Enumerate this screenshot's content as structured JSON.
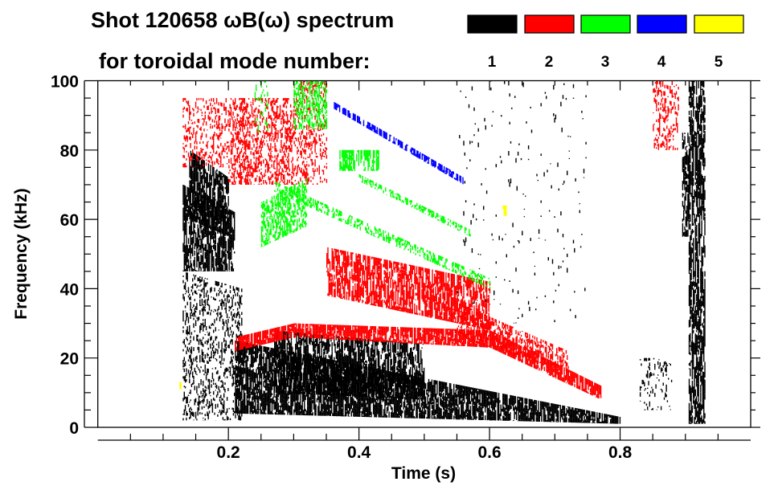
{
  "chart_data": {
    "type": "heatmap",
    "title_line1": "Shot 120658 ωB(ω) spectrum",
    "title_line2": "for toroidal mode number:",
    "xlabel": "Time (s)",
    "ylabel": "Frequency (kHz)",
    "xlim": [
      0,
      1.0
    ],
    "ylim": [
      0,
      100
    ],
    "xticks": [
      {
        "v": 0.2,
        "label": "0.2"
      },
      {
        "v": 0.4,
        "label": "0.4"
      },
      {
        "v": 0.6,
        "label": "0.6"
      },
      {
        "v": 0.8,
        "label": "0.8"
      }
    ],
    "yticks": [
      {
        "v": 0,
        "label": "0"
      },
      {
        "v": 20,
        "label": "20"
      },
      {
        "v": 40,
        "label": "40"
      },
      {
        "v": 60,
        "label": "60"
      },
      {
        "v": 80,
        "label": "80"
      },
      {
        "v": 100,
        "label": "100"
      }
    ],
    "legend": [
      {
        "mode": "1",
        "color": "#000000"
      },
      {
        "mode": "2",
        "color": "#ff0000"
      },
      {
        "mode": "3",
        "color": "#00ff00"
      },
      {
        "mode": "4",
        "color": "#0000ff"
      },
      {
        "mode": "5",
        "color": "#ffff00"
      }
    ],
    "legend_placement": "top",
    "features": [
      {
        "mode": 1,
        "t": [
          0.13,
          0.21
        ],
        "f_lo": [
          45,
          45
        ],
        "f_hi": [
          70,
          62
        ],
        "density": 0.75
      },
      {
        "mode": 1,
        "t": [
          0.14,
          0.2
        ],
        "f_lo": [
          60,
          55
        ],
        "f_hi": [
          80,
          72
        ],
        "density": 0.8
      },
      {
        "mode": 1,
        "t": [
          0.13,
          0.22
        ],
        "f_lo": [
          2,
          2
        ],
        "f_hi": [
          45,
          40
        ],
        "density": 0.3
      },
      {
        "mode": 1,
        "t": [
          0.21,
          0.8
        ],
        "f_lo": [
          4,
          1
        ],
        "f_hi": [
          25,
          3
        ],
        "density": 0.85
      },
      {
        "mode": 1,
        "t": [
          0.27,
          0.5
        ],
        "f_lo": [
          10,
          8
        ],
        "f_hi": [
          28,
          24
        ],
        "density": 0.7
      },
      {
        "mode": 1,
        "t": [
          0.905,
          0.93
        ],
        "f_lo": [
          1,
          1
        ],
        "f_hi": [
          100,
          100
        ],
        "density": 0.7
      },
      {
        "mode": 1,
        "t": [
          0.895,
          0.905
        ],
        "f_lo": [
          55,
          55
        ],
        "f_hi": [
          85,
          85
        ],
        "density": 0.7
      },
      {
        "mode": 1,
        "t": [
          0.83,
          0.88
        ],
        "f_lo": [
          5,
          5
        ],
        "f_hi": [
          20,
          20
        ],
        "density": 0.15
      },
      {
        "mode": 1,
        "t": [
          0.55,
          0.75
        ],
        "f_lo": [
          30,
          30
        ],
        "f_hi": [
          100,
          100
        ],
        "density": 0.02
      },
      {
        "mode": 2,
        "t": [
          0.13,
          0.2
        ],
        "f_lo": [
          75,
          75
        ],
        "f_hi": [
          95,
          95
        ],
        "density": 0.3
      },
      {
        "mode": 2,
        "t": [
          0.2,
          0.3
        ],
        "f_lo": [
          70,
          70
        ],
        "f_hi": [
          95,
          95
        ],
        "density": 0.45
      },
      {
        "mode": 2,
        "t": [
          0.3,
          0.35
        ],
        "f_lo": [
          70,
          70
        ],
        "f_hi": [
          100,
          100
        ],
        "density": 0.3
      },
      {
        "mode": 2,
        "t": [
          0.35,
          0.6
        ],
        "f_lo": [
          38,
          28
        ],
        "f_hi": [
          52,
          42
        ],
        "density": 0.7
      },
      {
        "mode": 2,
        "t": [
          0.55,
          0.72
        ],
        "f_lo": [
          26,
          16
        ],
        "f_hi": [
          36,
          22
        ],
        "density": 0.5
      },
      {
        "mode": 2,
        "t": [
          0.21,
          0.3
        ],
        "f_lo": [
          22,
          26
        ],
        "f_hi": [
          26,
          30
        ],
        "density": 0.85
      },
      {
        "mode": 2,
        "t": [
          0.3,
          0.6
        ],
        "f_lo": [
          26,
          23
        ],
        "f_hi": [
          30,
          28
        ],
        "density": 0.85
      },
      {
        "mode": 2,
        "t": [
          0.6,
          0.77
        ],
        "f_lo": [
          23,
          8
        ],
        "f_hi": [
          28,
          12
        ],
        "density": 0.85
      },
      {
        "mode": 2,
        "t": [
          0.85,
          0.89
        ],
        "f_lo": [
          80,
          80
        ],
        "f_hi": [
          100,
          100
        ],
        "density": 0.35
      },
      {
        "mode": 3,
        "t": [
          0.25,
          0.32
        ],
        "f_lo": [
          52,
          58
        ],
        "f_hi": [
          65,
          72
        ],
        "density": 0.55
      },
      {
        "mode": 3,
        "t": [
          0.3,
          0.35
        ],
        "f_lo": [
          86,
          86
        ],
        "f_hi": [
          100,
          100
        ],
        "density": 0.55
      },
      {
        "mode": 3,
        "t": [
          0.37,
          0.43
        ],
        "f_lo": [
          74,
          74
        ],
        "f_hi": [
          80,
          80
        ],
        "density": 0.7
      },
      {
        "mode": 3,
        "t": [
          0.27,
          0.6
        ],
        "f_lo": [
          68,
          40
        ],
        "f_hi": [
          71,
          43
        ],
        "density": 0.45
      },
      {
        "mode": 3,
        "t": [
          0.4,
          0.57
        ],
        "f_lo": [
          71,
          55
        ],
        "f_hi": [
          73,
          57
        ],
        "density": 0.45
      },
      {
        "mode": 3,
        "t": [
          0.24,
          0.26
        ],
        "f_lo": [
          85,
          85
        ],
        "f_hi": [
          100,
          100
        ],
        "density": 0.2
      },
      {
        "mode": 4,
        "t": [
          0.36,
          0.56
        ],
        "f_lo": [
          92,
          70
        ],
        "f_hi": [
          94,
          72
        ],
        "density": 0.7
      },
      {
        "mode": 5,
        "t": [
          0.62,
          0.625
        ],
        "f_lo": [
          61,
          61
        ],
        "f_hi": [
          64,
          64
        ],
        "density": 0.9
      },
      {
        "mode": 5,
        "t": [
          0.125,
          0.128
        ],
        "f_lo": [
          11,
          11
        ],
        "f_hi": [
          13,
          13
        ],
        "density": 0.9
      }
    ]
  }
}
